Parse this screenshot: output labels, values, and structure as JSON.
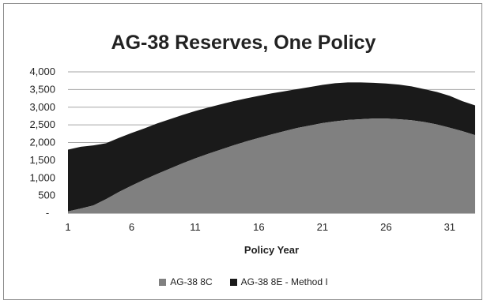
{
  "chart_data": {
    "type": "area",
    "stacked": true,
    "title": "AG-38 Reserves, One Policy",
    "xlabel": "Policy Year",
    "ylabel": "",
    "xlim": [
      1,
      33
    ],
    "ylim": [
      0,
      4000
    ],
    "x_ticks": [
      1,
      6,
      11,
      16,
      21,
      26,
      31
    ],
    "y_ticks": [
      {
        "value": 0,
        "label": "-"
      },
      {
        "value": 500,
        "label": "500"
      },
      {
        "value": 1000,
        "label": "1,000"
      },
      {
        "value": 1500,
        "label": "1,500"
      },
      {
        "value": 2000,
        "label": "2,000"
      },
      {
        "value": 2500,
        "label": "2,500"
      },
      {
        "value": 3000,
        "label": "3,000"
      },
      {
        "value": 3500,
        "label": "3,500"
      },
      {
        "value": 4000,
        "label": "4,000"
      }
    ],
    "grid": "horizontal",
    "legend_position": "bottom",
    "x": [
      1,
      2,
      3,
      4,
      5,
      6,
      7,
      8,
      9,
      10,
      11,
      12,
      13,
      14,
      15,
      16,
      17,
      18,
      19,
      20,
      21,
      22,
      23,
      24,
      25,
      26,
      27,
      28,
      29,
      30,
      31,
      32,
      33
    ],
    "series": [
      {
        "name": "AG-38 8C",
        "color": "#808080",
        "values": [
          50,
          130,
          220,
          400,
          600,
          780,
          950,
          1110,
          1260,
          1410,
          1550,
          1680,
          1800,
          1920,
          2030,
          2130,
          2230,
          2320,
          2410,
          2480,
          2550,
          2600,
          2640,
          2660,
          2680,
          2680,
          2660,
          2630,
          2580,
          2510,
          2420,
          2320,
          2210
        ]
      },
      {
        "name": "AG-38 8E - Method I",
        "color": "#1a1a1a",
        "values": [
          1750,
          1750,
          1700,
          1580,
          1530,
          1490,
          1450,
          1430,
          1400,
          1370,
          1340,
          1310,
          1280,
          1250,
          1220,
          1190,
          1160,
          1130,
          1100,
          1090,
          1080,
          1080,
          1060,
          1040,
          1010,
          990,
          980,
          960,
          930,
          920,
          900,
          850,
          840
        ]
      }
    ]
  }
}
